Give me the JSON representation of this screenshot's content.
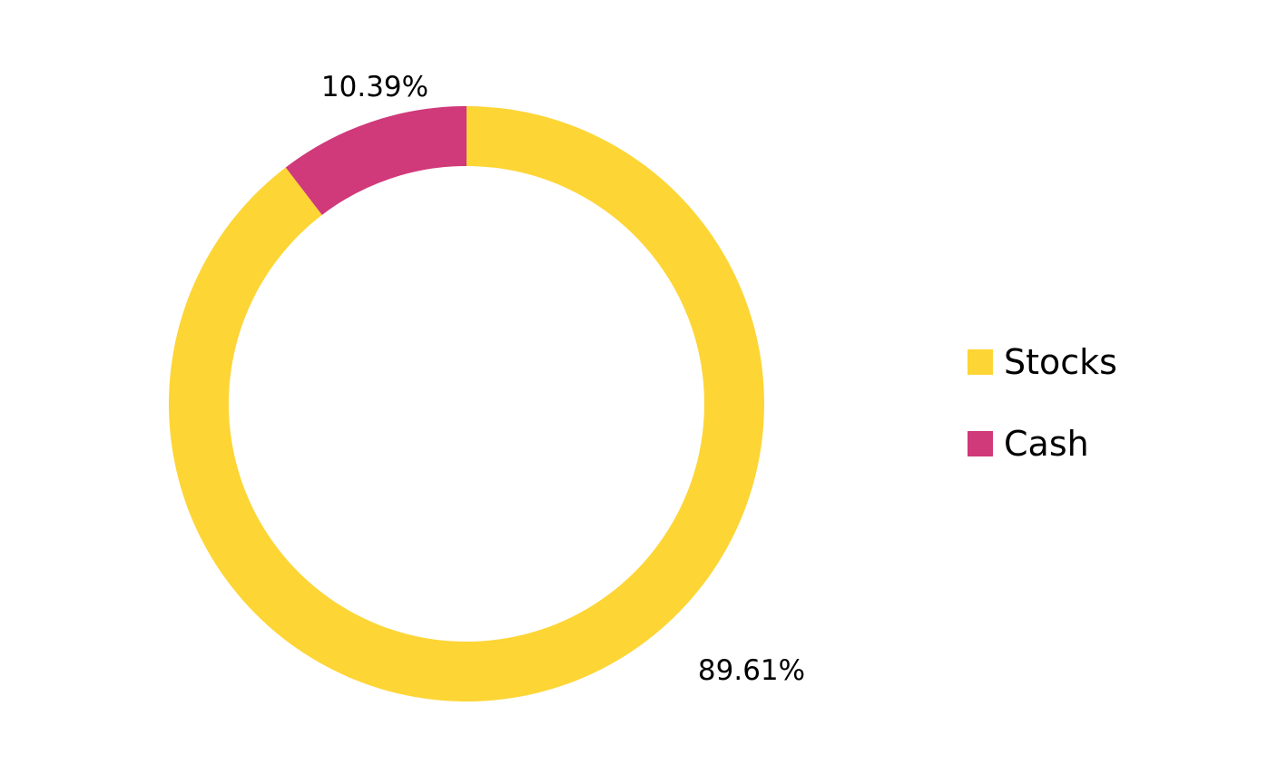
{
  "chart_data": {
    "type": "pie",
    "variant": "donut",
    "slices": [
      {
        "name": "Stocks",
        "value": 89.61,
        "label": "89.61%",
        "color": "#FDD535"
      },
      {
        "name": "Cash",
        "value": 10.39,
        "label": "10.39%",
        "color": "#D0397A"
      }
    ],
    "start_angle": "12 o'clock",
    "direction": "clockwise",
    "legend": {
      "position": "right",
      "entries": [
        {
          "label": "Stocks",
          "color": "#FDD535"
        },
        {
          "label": "Cash",
          "color": "#D0397A"
        }
      ]
    }
  }
}
